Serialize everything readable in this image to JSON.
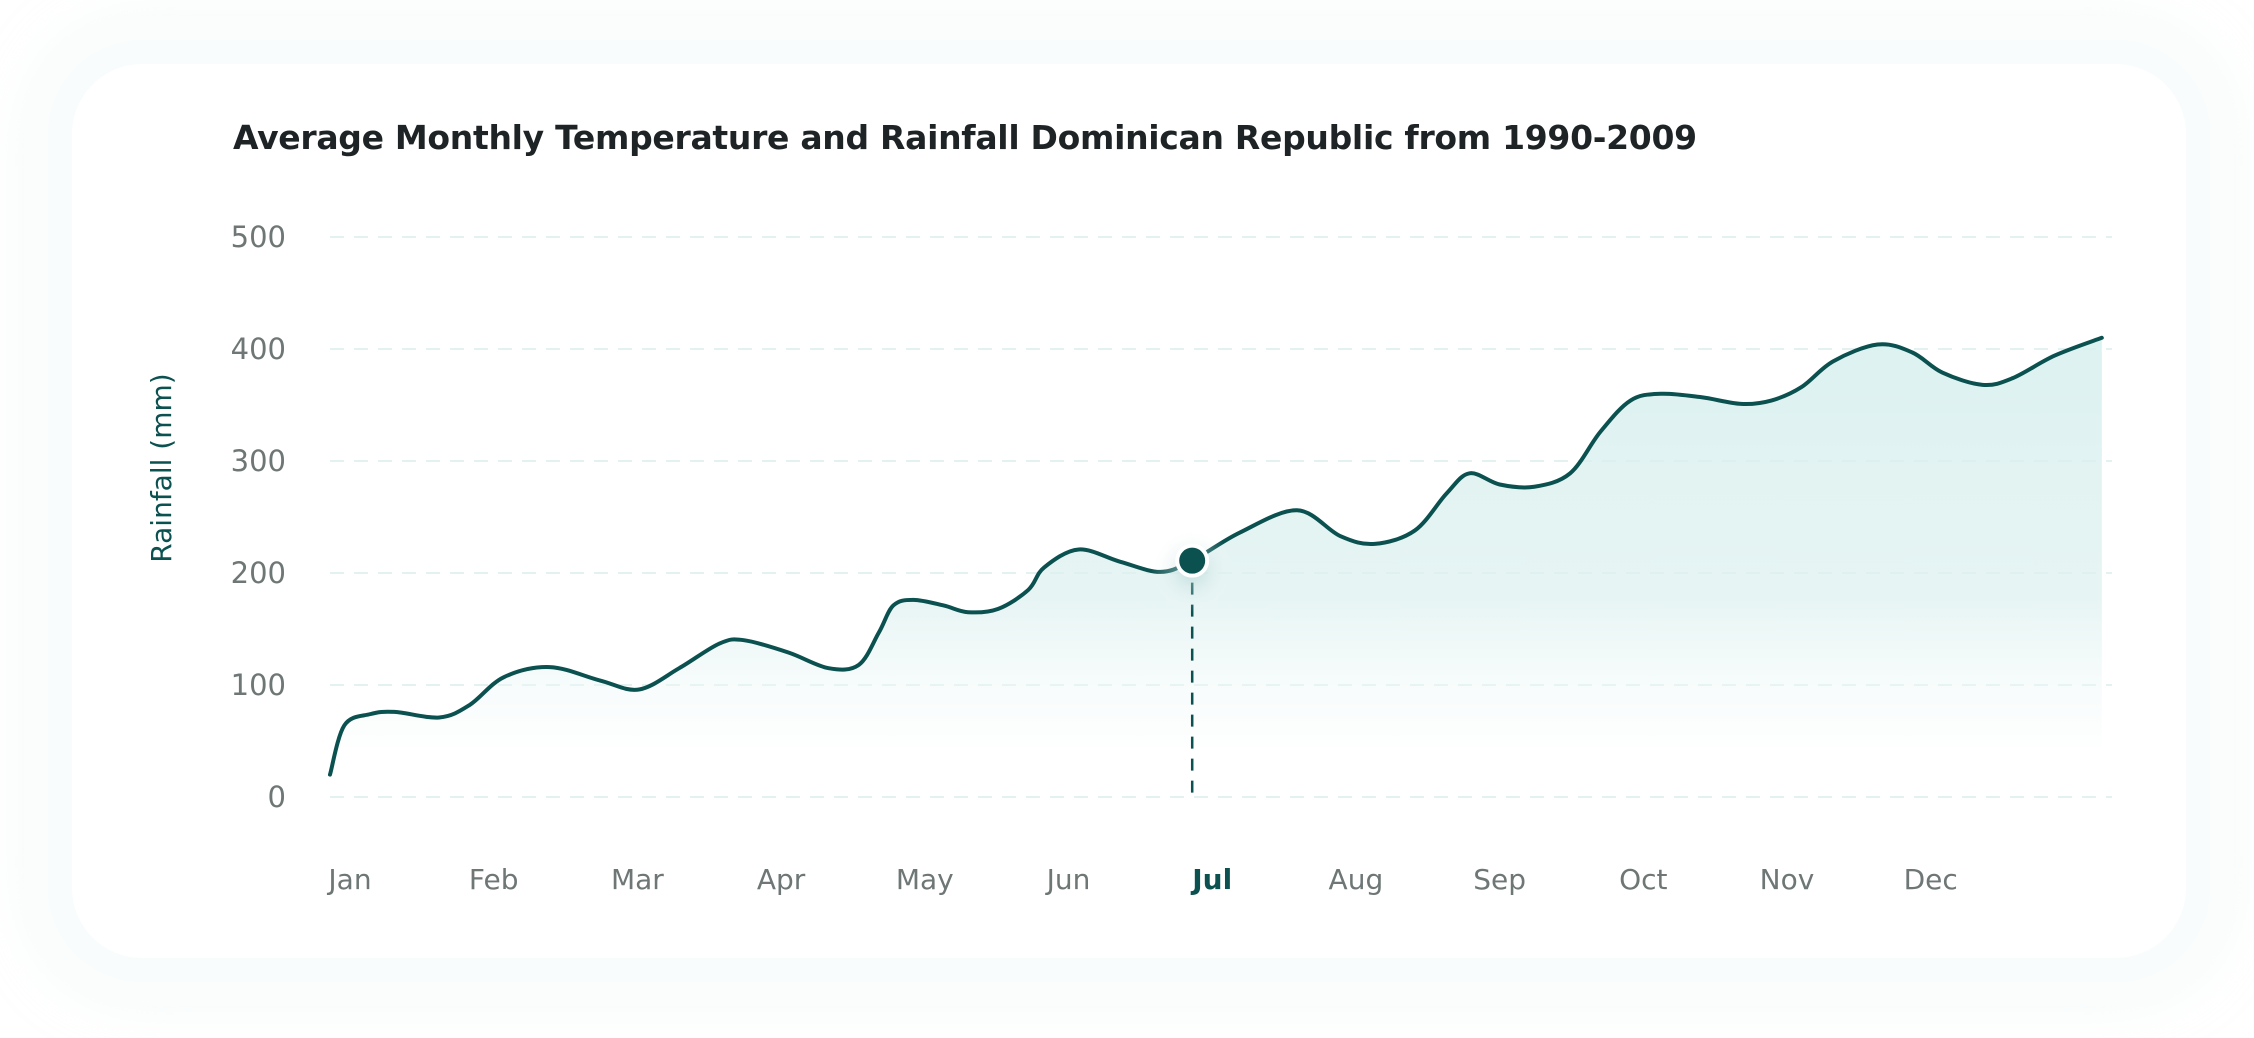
{
  "colors": {
    "line": "#0b5150",
    "fill_top": "#d6efee",
    "grid": "#e3f1f1",
    "tick_text": "#6e7676",
    "title_text": "#1e2326",
    "active_text": "#0b5150"
  },
  "chart_data": {
    "type": "area",
    "title": "Average Monthly Temperature and Rainfall Dominican Republic from 1990-2009",
    "xlabel": "",
    "ylabel": "Rainfall (mm)",
    "ylim": [
      0,
      500
    ],
    "yticks": [
      0,
      100,
      200,
      300,
      400,
      500
    ],
    "grid": true,
    "categories": [
      "Jan",
      "Feb",
      "Mar",
      "Apr",
      "May",
      "Jun",
      "Jul",
      "Aug",
      "Sep",
      "Oct",
      "Nov",
      "Dec"
    ],
    "highlighted_category": "Jul",
    "highlighted_value": 211,
    "series": [
      {
        "name": "Rainfall (mm)",
        "x": [
          0,
          0.1,
          0.28,
          0.45,
          0.76,
          0.97,
          1.21,
          1.53,
          1.88,
          2.15,
          2.43,
          2.71,
          2.88,
          3.19,
          3.47,
          3.68,
          3.82,
          3.92,
          4.06,
          4.27,
          4.44,
          4.65,
          4.86,
          4.97,
          5.21,
          5.5,
          5.78,
          6.0,
          6.33,
          6.73,
          7.03,
          7.27,
          7.55,
          7.77,
          7.93,
          8.14,
          8.38,
          8.63,
          8.84,
          9.05,
          9.26,
          9.54,
          9.82,
          10.03,
          10.24,
          10.46,
          10.77,
          11.01,
          11.22,
          11.5,
          11.71,
          12.0,
          12.33
        ],
        "values": [
          20,
          64,
          74,
          76,
          71,
          82,
          107,
          116,
          104,
          96,
          115,
          137,
          140,
          129,
          115,
          118,
          147,
          171,
          176,
          171,
          165,
          168,
          185,
          205,
          221,
          210,
          201,
          211,
          236,
          256,
          233,
          226,
          238,
          271,
          289,
          279,
          277,
          289,
          326,
          354,
          360,
          357,
          351,
          354,
          366,
          389,
          404,
          397,
          379,
          368,
          374,
          394,
          410
        ]
      }
    ]
  }
}
